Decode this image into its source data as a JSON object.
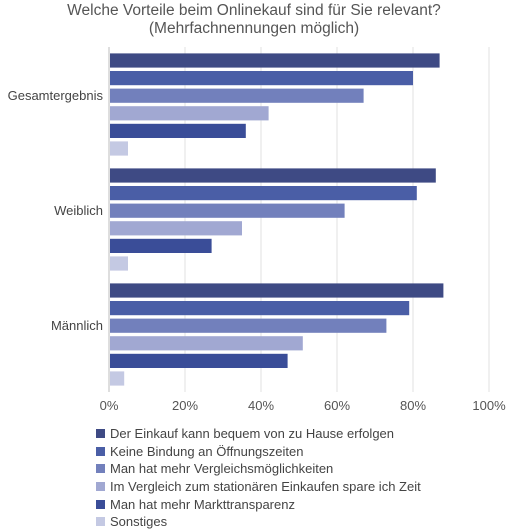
{
  "chart_data": {
    "type": "bar",
    "orientation": "horizontal",
    "title": "Welche Vorteile beim Onlinekauf sind für Sie relevant?",
    "subtitle": "(Mehrfachnennungen möglich)",
    "categories": [
      "Gesamtergebnis",
      "Weiblich",
      "Männlich"
    ],
    "series": [
      {
        "name": "Der Einkauf kann bequem von zu Hause erfolgen",
        "values": [
          87,
          86,
          88
        ],
        "color": "#3e4a84"
      },
      {
        "name": "Keine Bindung an Öffnungszeiten",
        "values": [
          80,
          81,
          79
        ],
        "color": "#4a5ea6"
      },
      {
        "name": "Man hat mehr Vergleichsmöglichkeiten",
        "values": [
          67,
          62,
          73
        ],
        "color": "#7280bc"
      },
      {
        "name": "Im Vergleich zum stationären Einkaufen spare ich Zeit",
        "values": [
          42,
          35,
          51
        ],
        "color": "#a1a8d2"
      },
      {
        "name": "Man hat mehr Markttransparenz",
        "values": [
          36,
          27,
          47
        ],
        "color": "#3a4d98"
      },
      {
        "name": "Sonstiges",
        "values": [
          5,
          5,
          4
        ],
        "color": "#c4c9e3"
      }
    ],
    "xlim": [
      0,
      100
    ],
    "x_ticks": [
      "0%",
      "20%",
      "40%",
      "60%",
      "80%",
      "100%"
    ],
    "x_tick_values": [
      0,
      20,
      40,
      60,
      80,
      100
    ],
    "grid": true,
    "legend_position": "bottom"
  }
}
